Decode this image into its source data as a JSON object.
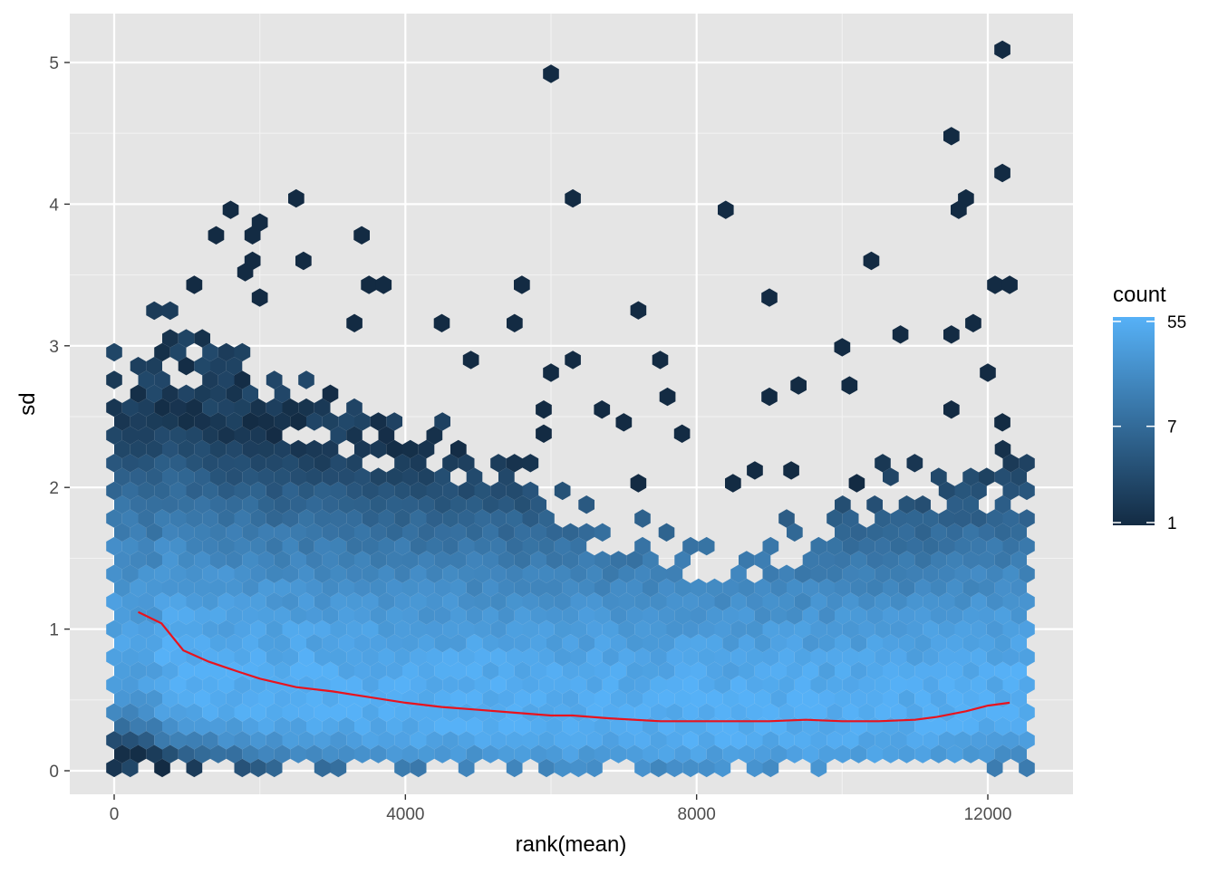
{
  "chart_data": {
    "type": "hexbin",
    "xlabel": "rank(mean)",
    "ylabel": "sd",
    "xlim": [
      -800,
      13200
    ],
    "ylim": [
      -0.17,
      5.28
    ],
    "x_ticks": [
      0,
      4000,
      8000,
      12000
    ],
    "x_tick_labels": [
      "0",
      "4000",
      "8000",
      "12000"
    ],
    "y_ticks": [
      0,
      1,
      2,
      3,
      4,
      5
    ],
    "y_tick_labels": [
      "0",
      "1",
      "2",
      "3",
      "4",
      "5"
    ],
    "grid": true,
    "legend": {
      "title": "count",
      "position": "right",
      "ticks": [
        1,
        7,
        55
      ],
      "tick_labels": [
        "1",
        "7",
        "55"
      ],
      "scale": "log",
      "color_low": "#132b43",
      "color_high": "#56b1f7"
    },
    "density_summary": {
      "x_bins": [
        0,
        1000,
        2000,
        3000,
        4000,
        5000,
        6000,
        7000,
        8000,
        9000,
        10000,
        11000,
        12000,
        12600
      ],
      "sd_upper_extent": [
        3.0,
        3.2,
        2.9,
        2.6,
        2.5,
        2.4,
        2.0,
        1.7,
        1.5,
        1.6,
        1.9,
        2.1,
        2.2,
        2.2
      ],
      "sd_peak_density": [
        0.75,
        0.6,
        0.5,
        0.45,
        0.4,
        0.38,
        0.35,
        0.33,
        0.32,
        0.32,
        0.32,
        0.33,
        0.4,
        0.42
      ]
    },
    "outliers": [
      {
        "x": 6000,
        "y": 4.92
      },
      {
        "x": 12200,
        "y": 5.09
      },
      {
        "x": 11500,
        "y": 4.48
      },
      {
        "x": 12200,
        "y": 4.22
      },
      {
        "x": 2500,
        "y": 4.04
      },
      {
        "x": 6300,
        "y": 4.04
      },
      {
        "x": 11700,
        "y": 4.04
      },
      {
        "x": 11600,
        "y": 3.96
      },
      {
        "x": 1600,
        "y": 3.96
      },
      {
        "x": 8400,
        "y": 3.96
      },
      {
        "x": 2000,
        "y": 3.87
      },
      {
        "x": 1900,
        "y": 3.78
      },
      {
        "x": 1400,
        "y": 3.78
      },
      {
        "x": 3400,
        "y": 3.78
      },
      {
        "x": 1900,
        "y": 3.6
      },
      {
        "x": 2600,
        "y": 3.6
      },
      {
        "x": 10400,
        "y": 3.6
      },
      {
        "x": 1800,
        "y": 3.52
      },
      {
        "x": 3500,
        "y": 3.43
      },
      {
        "x": 3700,
        "y": 3.43
      },
      {
        "x": 5600,
        "y": 3.43
      },
      {
        "x": 12100,
        "y": 3.43
      },
      {
        "x": 12300,
        "y": 3.43
      },
      {
        "x": 9000,
        "y": 3.34
      },
      {
        "x": 2000,
        "y": 3.34
      },
      {
        "x": 1100,
        "y": 3.43
      },
      {
        "x": 7200,
        "y": 3.25
      },
      {
        "x": 4500,
        "y": 3.16
      },
      {
        "x": 5500,
        "y": 3.16
      },
      {
        "x": 3300,
        "y": 3.16
      },
      {
        "x": 11500,
        "y": 3.08
      },
      {
        "x": 10800,
        "y": 3.08
      },
      {
        "x": 11800,
        "y": 3.16
      },
      {
        "x": 4900,
        "y": 2.9
      },
      {
        "x": 6300,
        "y": 2.9
      },
      {
        "x": 7500,
        "y": 2.9
      },
      {
        "x": 10000,
        "y": 2.99
      },
      {
        "x": 6000,
        "y": 2.81
      },
      {
        "x": 12000,
        "y": 2.81
      },
      {
        "x": 10100,
        "y": 2.72
      },
      {
        "x": 9400,
        "y": 2.72
      },
      {
        "x": 7600,
        "y": 2.64
      },
      {
        "x": 9000,
        "y": 2.64
      },
      {
        "x": 6700,
        "y": 2.55
      },
      {
        "x": 5900,
        "y": 2.55
      },
      {
        "x": 7000,
        "y": 2.46
      },
      {
        "x": 11500,
        "y": 2.55
      },
      {
        "x": 12200,
        "y": 2.46
      },
      {
        "x": 7800,
        "y": 2.38
      },
      {
        "x": 5900,
        "y": 2.38
      },
      {
        "x": 9300,
        "y": 2.12
      },
      {
        "x": 10200,
        "y": 2.03
      },
      {
        "x": 7200,
        "y": 2.03
      },
      {
        "x": 8800,
        "y": 2.12
      },
      {
        "x": 8500,
        "y": 2.03
      }
    ],
    "series": [
      {
        "type": "line",
        "color": "#e8131e",
        "x": [
          330,
          650,
          950,
          1300,
          1700,
          2000,
          2500,
          3000,
          3500,
          4000,
          4500,
          5000,
          5500,
          6000,
          6300,
          6800,
          7500,
          8000,
          8500,
          9000,
          9500,
          10000,
          10500,
          11000,
          11300,
          11700,
          12000,
          12300
        ],
        "y": [
          1.12,
          1.04,
          0.85,
          0.77,
          0.7,
          0.65,
          0.59,
          0.56,
          0.52,
          0.48,
          0.45,
          0.43,
          0.41,
          0.39,
          0.39,
          0.37,
          0.35,
          0.35,
          0.35,
          0.35,
          0.36,
          0.35,
          0.35,
          0.36,
          0.38,
          0.42,
          0.46,
          0.48
        ]
      }
    ]
  }
}
